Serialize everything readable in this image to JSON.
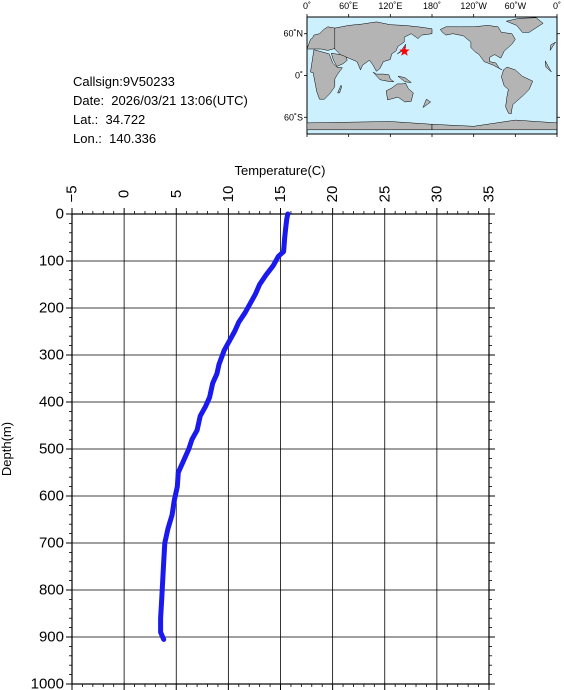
{
  "info": {
    "callsign": "Callsign:9V50233",
    "date": "Date:  2026/03/21 13:06(UTC)",
    "lat": "Lat.:  34.722",
    "lon": "Lon.:  140.336"
  },
  "map": {
    "lon_labels": [
      "0˚",
      "60˚E",
      "120˚E",
      "180˚",
      "120˚W",
      "60˚W",
      "0˚"
    ],
    "lat_labels": [
      "60˚N",
      "0˚",
      "60˚S"
    ],
    "ocean_color": "#cdf0ff",
    "land_color": "#b4b4b4",
    "marker": {
      "lon": 140.336,
      "lat": 34.722,
      "color": "#ff0000",
      "icon": "star-icon"
    }
  },
  "chart_data": {
    "type": "line",
    "xlabel": "Temperature(C)",
    "ylabel": "Depth(m)",
    "xlim": [
      -5,
      35
    ],
    "ylim": [
      0,
      1000
    ],
    "y_inverted": true,
    "x_axis_position": "top",
    "grid": true,
    "x_ticks": [
      "-5",
      "0",
      "5",
      "10",
      "15",
      "20",
      "25",
      "30",
      "35"
    ],
    "y_ticks": [
      "0",
      "100",
      "200",
      "300",
      "400",
      "500",
      "600",
      "700",
      "800",
      "900",
      "1000"
    ],
    "series": [
      {
        "color": "#1a1aee",
        "points": [
          [
            15.7,
            0
          ],
          [
            15.6,
            10
          ],
          [
            15.5,
            30
          ],
          [
            15.4,
            50
          ],
          [
            15.3,
            80
          ],
          [
            14.8,
            90
          ],
          [
            14.3,
            110
          ],
          [
            13.6,
            130
          ],
          [
            13.0,
            150
          ],
          [
            12.6,
            170
          ],
          [
            12.1,
            190
          ],
          [
            11.6,
            210
          ],
          [
            11.0,
            230
          ],
          [
            10.6,
            250
          ],
          [
            10.1,
            270
          ],
          [
            9.6,
            290
          ],
          [
            9.1,
            320
          ],
          [
            8.9,
            340
          ],
          [
            8.5,
            360
          ],
          [
            8.2,
            390
          ],
          [
            7.8,
            410
          ],
          [
            7.3,
            430
          ],
          [
            7.0,
            460
          ],
          [
            6.5,
            480
          ],
          [
            6.2,
            500
          ],
          [
            5.8,
            520
          ],
          [
            5.2,
            550
          ],
          [
            5.1,
            580
          ],
          [
            4.8,
            610
          ],
          [
            4.6,
            640
          ],
          [
            4.2,
            670
          ],
          [
            3.9,
            700
          ],
          [
            3.8,
            740
          ],
          [
            3.7,
            780
          ],
          [
            3.6,
            820
          ],
          [
            3.5,
            860
          ],
          [
            3.5,
            890
          ],
          [
            3.8,
            905
          ]
        ]
      }
    ]
  }
}
